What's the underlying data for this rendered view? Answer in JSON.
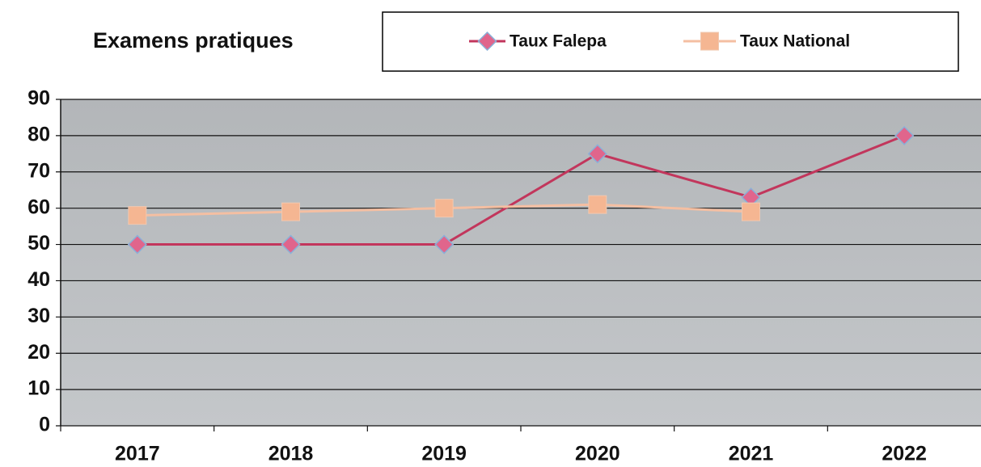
{
  "chart_data": {
    "type": "line",
    "title": "Examens pratiques",
    "categories": [
      "2017",
      "2018",
      "2019",
      "2020",
      "2021",
      "2022"
    ],
    "series": [
      {
        "name": "Taux Falepa",
        "color": "#c2365c",
        "marker_color": "#e0658c",
        "marker": "diamond",
        "values": [
          50,
          50,
          50,
          75,
          63,
          80
        ]
      },
      {
        "name": "Taux National",
        "color": "#f4bfa2",
        "marker_color": "#f5b692",
        "marker": "square",
        "values": [
          58,
          59,
          60,
          61,
          59,
          null
        ]
      }
    ],
    "ylim": [
      0,
      90
    ],
    "yticks": [
      0,
      10,
      20,
      30,
      40,
      50,
      60,
      70,
      80,
      90
    ],
    "grid": true,
    "legend": "top"
  }
}
